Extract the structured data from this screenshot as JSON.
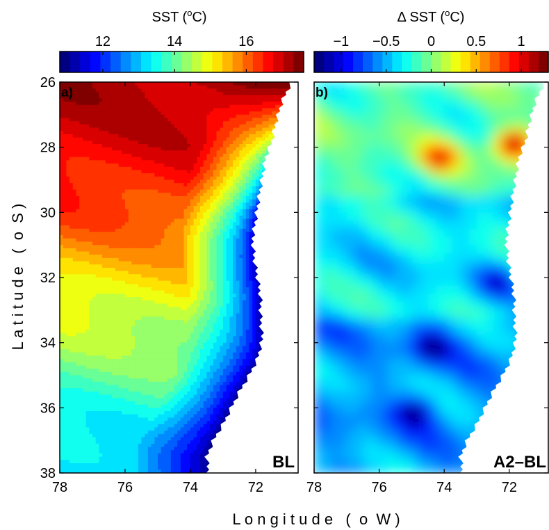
{
  "chart_data": [
    {
      "type": "heatmap",
      "panel_label": "a)",
      "corner_label": "BL",
      "colorbar": {
        "title": "SST (",
        "title_sup": "o",
        "title_unit": "C)",
        "range": [
          10.8,
          17.6
        ],
        "ticks": [
          12,
          14,
          16
        ],
        "tick_labels": [
          "12",
          "14",
          "16"
        ]
      },
      "xlabel": "L o n g i t u d e   (  o  W )",
      "ylabel": "L a t i t u d e   (  o  S )",
      "xlim": [
        78,
        70.8
      ],
      "ylim": [
        38,
        26
      ],
      "xticks": [
        "78",
        "76",
        "74",
        "72"
      ],
      "yticks": [
        "26",
        "28",
        "30",
        "32",
        "34",
        "36",
        "38"
      ],
      "x_values": [
        78,
        76,
        74,
        72
      ],
      "y_values": [
        26,
        28,
        30,
        32,
        34,
        36,
        38
      ],
      "description_free": true,
      "field_profile_lat": [
        26,
        28,
        30,
        32,
        34,
        36,
        38
      ],
      "offshore_sst": [
        17.2,
        16.8,
        16.2,
        15.2,
        14.4,
        13.6,
        13.0
      ],
      "coastal_sst": [
        17.6,
        14.0,
        11.4,
        11.0,
        11.0,
        10.9,
        10.9
      ]
    },
    {
      "type": "heatmap",
      "panel_label": "b)",
      "corner_label": "A2–BL",
      "colorbar": {
        "title": "Δ SST (",
        "title_sup": "o",
        "title_unit": "C)",
        "range": [
          -1.3,
          1.3
        ],
        "ticks": [
          -1,
          -0.5,
          0,
          0.5,
          1
        ],
        "tick_labels": [
          "−1",
          "−0.5",
          "0",
          "0.5",
          "1"
        ]
      },
      "xlim": [
        78,
        70.8
      ],
      "ylim": [
        38,
        26
      ],
      "xticks": [
        "78",
        "76",
        "74",
        "72"
      ],
      "x_values": [
        78,
        76,
        74,
        72
      ],
      "hotspots": [
        {
          "lon": 72.0,
          "lat": 27.8,
          "value": 0.9
        },
        {
          "lon": 74.3,
          "lat": 28.2,
          "value": 0.55
        },
        {
          "lon": 72.5,
          "lat": 32.0,
          "value": -0.9
        },
        {
          "lon": 74.5,
          "lat": 34.0,
          "value": -1.0
        },
        {
          "lon": 75.0,
          "lat": 36.0,
          "value": -1.0
        }
      ]
    }
  ]
}
